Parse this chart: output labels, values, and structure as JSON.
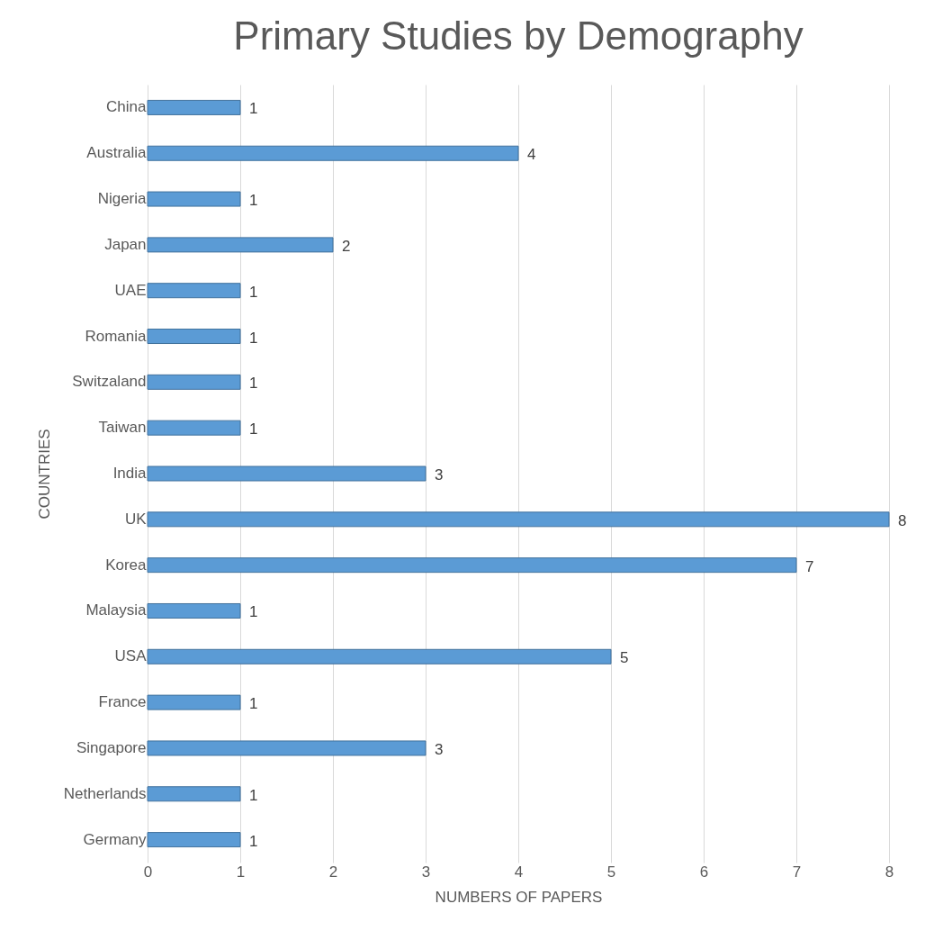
{
  "chart_data": {
    "type": "bar",
    "orientation": "horizontal",
    "title": "Primary Studies by Demography",
    "xlabel": "NUMBERS OF PAPERS",
    "ylabel": "COUNTRIES",
    "categories": [
      "China",
      "Australia",
      "Nigeria",
      "Japan",
      "UAE",
      "Romania",
      "Switzaland",
      "Taiwan",
      "India",
      "UK",
      "Korea",
      "Malaysia",
      "USA",
      "France",
      "Singapore",
      "Netherlands",
      "Germany"
    ],
    "values": [
      1,
      4,
      1,
      2,
      1,
      1,
      1,
      1,
      3,
      8,
      7,
      1,
      5,
      1,
      3,
      1,
      1
    ],
    "color": "#5b9bd5",
    "xlim": [
      0,
      8
    ],
    "xticks": [
      0,
      1,
      2,
      3,
      4,
      5,
      6,
      7,
      8
    ],
    "grid": "x",
    "data_labels": true
  }
}
